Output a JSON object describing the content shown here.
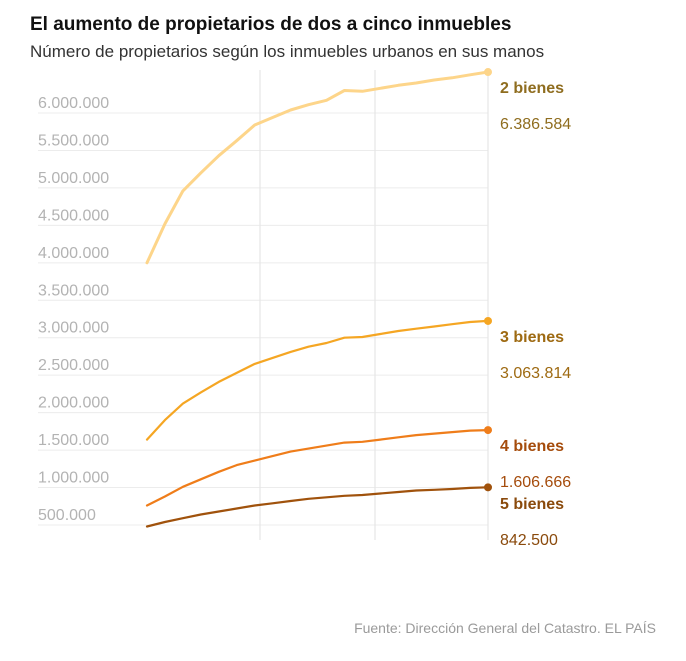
{
  "title": "El aumento de propietarios de dos a cinco inmuebles",
  "subtitle": "Número de propietarios según los inmuebles urbanos en sus manos",
  "source": "Fuente: Dirección General del Catastro. EL PAÍS",
  "chart_data": {
    "type": "line",
    "title": "El aumento de propietarios de dos a cinco inmuebles",
    "subtitle": "Número de propietarios según los inmuebles urbanos en sus manos",
    "xlabel": "",
    "ylabel": "",
    "x": [
      0,
      1,
      2,
      3,
      4,
      5,
      6,
      7,
      8,
      9,
      10,
      11,
      12,
      13,
      14,
      15,
      16,
      17,
      18,
      19
    ],
    "ylim": [
      300000,
      6400000
    ],
    "y_ticks": [
      500000,
      1000000,
      1500000,
      2000000,
      2500000,
      3000000,
      3500000,
      4000000,
      4500000,
      5000000,
      5500000,
      6000000
    ],
    "y_tick_labels": [
      "500.000",
      "1.000.000",
      "1.500.000",
      "2.000.000",
      "2.500.000",
      "3.000.000",
      "3.500.000",
      "4.000.000",
      "4.500.000",
      "5.000.000",
      "5.500.000",
      "6.000.000"
    ],
    "grid": "vertical and horizontal",
    "series": [
      {
        "name": "2 bienes",
        "end_label": "6.386.584",
        "color": "#fdd58a",
        "label_color": "#8f6d1f",
        "values": [
          3840000,
          4360000,
          4800000,
          5040000,
          5270000,
          5470000,
          5680000,
          5780000,
          5880000,
          5950000,
          6010000,
          6140000,
          6130000,
          6170000,
          6210000,
          6240000,
          6280000,
          6310000,
          6350000,
          6386584
        ]
      },
      {
        "name": "3 bienes",
        "end_label": "3.063.814",
        "color": "#f5a623",
        "label_color": "#9e6a12",
        "values": [
          1480000,
          1740000,
          1960000,
          2110000,
          2250000,
          2370000,
          2490000,
          2570000,
          2650000,
          2720000,
          2770000,
          2840000,
          2850000,
          2890000,
          2930000,
          2960000,
          2990000,
          3020000,
          3050000,
          3063814
        ]
      },
      {
        "name": "4 bienes",
        "end_label": "1.606.666",
        "color": "#ef7d1a",
        "label_color": "#a54c0c",
        "values": [
          600000,
          720000,
          850000,
          950000,
          1050000,
          1140000,
          1200000,
          1260000,
          1320000,
          1360000,
          1400000,
          1440000,
          1450000,
          1480000,
          1510000,
          1540000,
          1560000,
          1580000,
          1600000,
          1606666
        ]
      },
      {
        "name": "5 bienes",
        "end_label": "842.500",
        "color": "#a0520c",
        "label_color": "#8a4a0c",
        "values": [
          320000,
          380000,
          430000,
          480000,
          520000,
          560000,
          600000,
          630000,
          660000,
          690000,
          710000,
          730000,
          740000,
          760000,
          780000,
          800000,
          810000,
          820000,
          835000,
          842500
        ]
      }
    ]
  }
}
